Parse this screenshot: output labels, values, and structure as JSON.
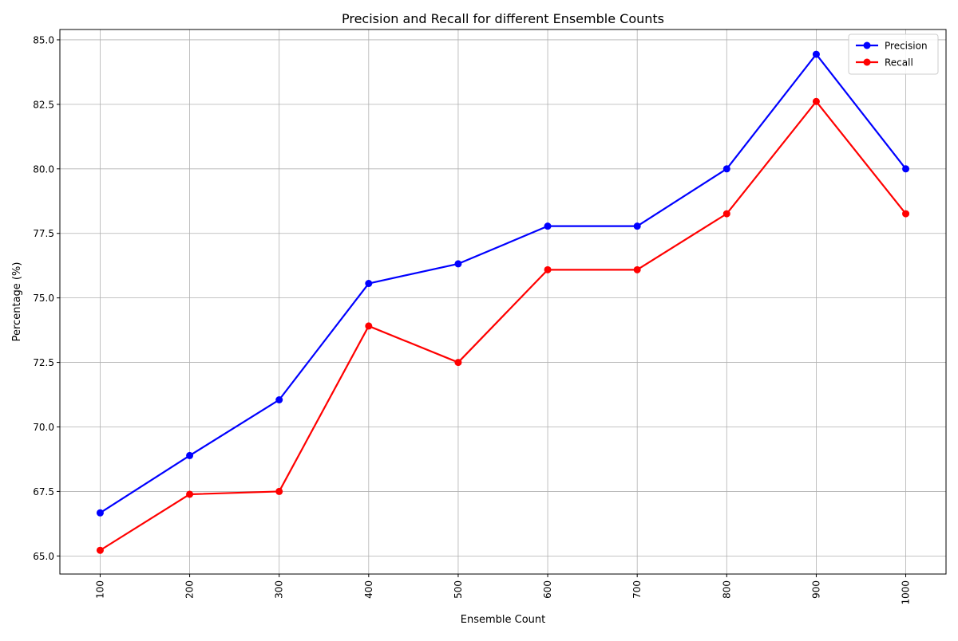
{
  "chart_data": {
    "type": "line",
    "title": "Precision and Recall for different Ensemble Counts",
    "xlabel": "Ensemble Count",
    "ylabel": "Percentage (%)",
    "x": [
      100,
      200,
      300,
      400,
      500,
      600,
      700,
      800,
      900,
      1000
    ],
    "x_tick_labels": [
      "100",
      "200",
      "300",
      "400",
      "500",
      "600",
      "700",
      "800",
      "900",
      "1000"
    ],
    "y_ticks": [
      65.0,
      67.5,
      70.0,
      72.5,
      75.0,
      77.5,
      80.0,
      82.5,
      85.0
    ],
    "y_tick_labels": [
      "65.0",
      "67.5",
      "70.0",
      "72.5",
      "75.0",
      "77.5",
      "80.0",
      "82.5",
      "85.0"
    ],
    "xlim": [
      55,
      1045
    ],
    "ylim": [
      64.3,
      85.4
    ],
    "grid": true,
    "legend_position": "top-right",
    "series": [
      {
        "name": "Precision",
        "color": "#0000ff",
        "values": [
          66.67,
          68.89,
          71.05,
          75.56,
          76.32,
          77.78,
          77.78,
          80.0,
          84.44,
          80.0
        ]
      },
      {
        "name": "Recall",
        "color": "#ff0000",
        "values": [
          65.22,
          67.39,
          67.5,
          73.91,
          72.5,
          76.09,
          76.09,
          78.26,
          82.61,
          78.26
        ]
      }
    ]
  }
}
